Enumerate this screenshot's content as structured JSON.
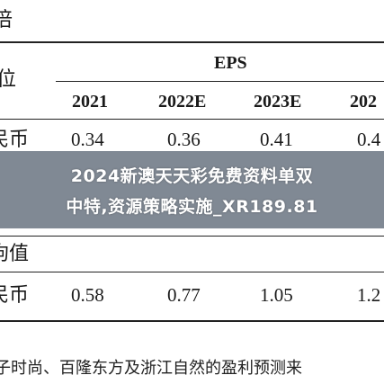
{
  "table": {
    "title_fragment": "倍",
    "unit_header": "位",
    "eps_label": "EPS",
    "years": [
      "2021",
      "2022E",
      "2023E",
      "202"
    ],
    "row1": {
      "label": "民币",
      "values": [
        "0.34",
        "0.36",
        "0.41",
        "0.4"
      ]
    },
    "section_label": "拘值",
    "row2": {
      "label": "民币",
      "values": [
        "0.58",
        "0.77",
        "1.05",
        "1.2"
      ]
    }
  },
  "overlay": {
    "line1": "2024新澳天天彩免费资料单双",
    "line2": "中特,资源策略实施_XR189.81"
  },
  "footer_text": "子时尚、百隆东方及浙江自然的盈利预测来"
}
